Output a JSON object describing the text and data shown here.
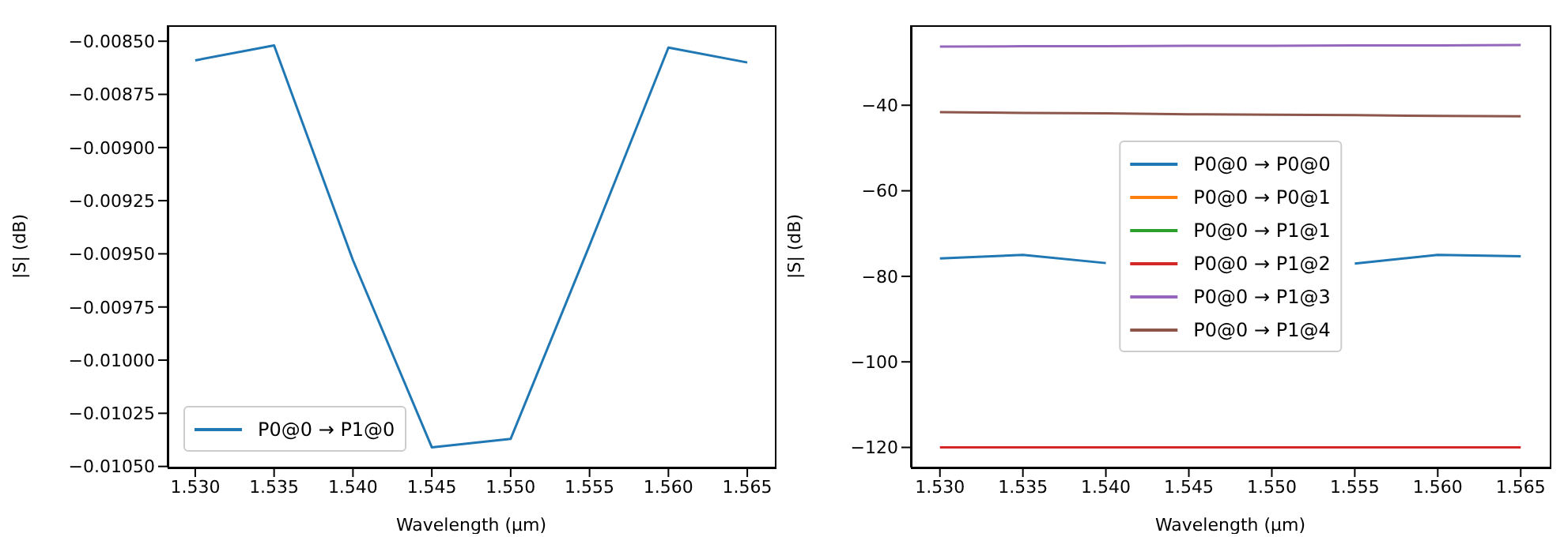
{
  "chart_data": [
    {
      "type": "line",
      "x": [
        1.53,
        1.535,
        1.54,
        1.545,
        1.55,
        1.555,
        1.56,
        1.565
      ],
      "xlabel": "Wavelength (µm)",
      "ylabel": "|S| (dB)",
      "series": [
        {
          "name": "P0@0 → P1@0",
          "color": "#1f77b4",
          "values": [
            -0.00859,
            -0.00852,
            -0.00953,
            -0.01041,
            -0.01037,
            -0.00946,
            -0.00853,
            -0.0086
          ]
        }
      ],
      "xlim": [
        1.52825,
        1.56675
      ],
      "xticks": [
        {
          "value": 1.53,
          "label": "1.530"
        },
        {
          "value": 1.535,
          "label": "1.535"
        },
        {
          "value": 1.54,
          "label": "1.540"
        },
        {
          "value": 1.545,
          "label": "1.545"
        },
        {
          "value": 1.55,
          "label": "1.550"
        },
        {
          "value": 1.555,
          "label": "1.555"
        },
        {
          "value": 1.56,
          "label": "1.560"
        },
        {
          "value": 1.565,
          "label": "1.565"
        }
      ],
      "ylim": [
        -0.010505,
        -0.008425
      ],
      "yticks": [
        {
          "value": -0.0105,
          "label": "−0.01050"
        },
        {
          "value": -0.01025,
          "label": "−0.01025"
        },
        {
          "value": -0.01,
          "label": "−0.01000"
        },
        {
          "value": -0.00975,
          "label": "−0.00975"
        },
        {
          "value": -0.0095,
          "label": "−0.00950"
        },
        {
          "value": -0.00925,
          "label": "−0.00925"
        },
        {
          "value": -0.009,
          "label": "−0.00900"
        },
        {
          "value": -0.00875,
          "label": "−0.00875"
        },
        {
          "value": -0.0085,
          "label": "−0.00850"
        }
      ],
      "legend": "bottom left",
      "grid": false
    },
    {
      "type": "line",
      "x": [
        1.53,
        1.535,
        1.54,
        1.545,
        1.55,
        1.555,
        1.56,
        1.565
      ],
      "xlabel": "Wavelength (µm)",
      "ylabel": "|S| (dB)",
      "series": [
        {
          "name": "P0@0 → P0@0",
          "color": "#1f77b4",
          "values": [
            -75.8,
            -75.0,
            -76.9,
            null,
            null,
            -77.0,
            -75.0,
            -75.3
          ]
        },
        {
          "name": "P0@0 → P0@1",
          "color": "#ff7f0e",
          "values": [
            null,
            null,
            null,
            null,
            null,
            null,
            null,
            null
          ]
        },
        {
          "name": "P0@0 → P1@1",
          "color": "#2ca02c",
          "values": [
            null,
            null,
            null,
            null,
            null,
            null,
            null,
            null
          ]
        },
        {
          "name": "P0@0 → P1@2",
          "color": "#d62728",
          "values": [
            -120,
            -120,
            -120,
            -120,
            -120,
            -120,
            -120,
            -120
          ]
        },
        {
          "name": "P0@0 → P1@3",
          "color": "#9467bd",
          "values": [
            -26.3,
            -26.2,
            -26.2,
            -26.1,
            -26.1,
            -26.0,
            -26.0,
            -25.9
          ]
        },
        {
          "name": "P0@0 → P1@4",
          "color": "#8c564b",
          "values": [
            -41.6,
            -41.8,
            -41.9,
            -42.1,
            -42.2,
            -42.3,
            -42.5,
            -42.6
          ]
        }
      ],
      "xlim": [
        1.52825,
        1.56675
      ],
      "xticks": [
        {
          "value": 1.53,
          "label": "1.530"
        },
        {
          "value": 1.535,
          "label": "1.535"
        },
        {
          "value": 1.54,
          "label": "1.540"
        },
        {
          "value": 1.545,
          "label": "1.545"
        },
        {
          "value": 1.55,
          "label": "1.550"
        },
        {
          "value": 1.555,
          "label": "1.555"
        },
        {
          "value": 1.56,
          "label": "1.560"
        },
        {
          "value": 1.565,
          "label": "1.565"
        }
      ],
      "ylim": [
        -124.7,
        -21.3
      ],
      "yticks": [
        {
          "value": -120,
          "label": "−120"
        },
        {
          "value": -100,
          "label": "−100"
        },
        {
          "value": -80,
          "label": "−80"
        },
        {
          "value": -60,
          "label": "−60"
        },
        {
          "value": -40,
          "label": "−40"
        }
      ],
      "legend": "center",
      "grid": false
    }
  ]
}
